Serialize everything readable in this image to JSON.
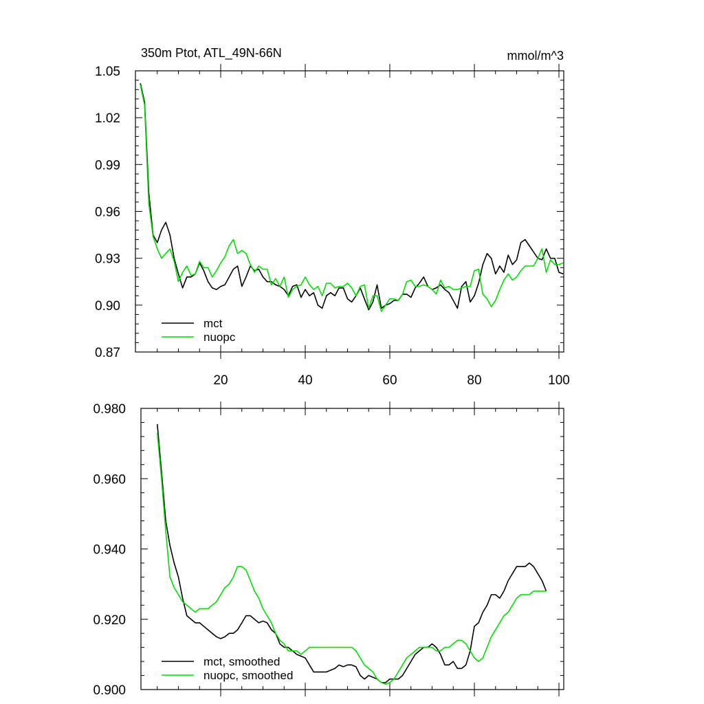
{
  "chart_data": [
    {
      "type": "line",
      "title": "350m Ptot, ATL_49N-66N",
      "units": "mmol/m^3",
      "xlim": [
        0,
        102
      ],
      "ylim": [
        0.87,
        1.05
      ],
      "yticks": [
        0.87,
        0.9,
        0.93,
        0.96,
        0.99,
        1.02,
        1.05
      ],
      "ytick_labels": [
        "0.87",
        "0.90",
        "0.93",
        "0.96",
        "0.99",
        "1.02",
        "1.05"
      ],
      "xticks": [
        20,
        40,
        60,
        80,
        100
      ],
      "xtick_labels": [
        "20",
        "40",
        "60",
        "80",
        "100"
      ],
      "legend_position": "bottom-left",
      "series": [
        {
          "name": "mct",
          "color": "#000000",
          "x": [
            1,
            2,
            3,
            4,
            5,
            6,
            7,
            8,
            9,
            10,
            11,
            12,
            13,
            14,
            15,
            16,
            17,
            18,
            19,
            20,
            21,
            22,
            23,
            24,
            25,
            26,
            27,
            28,
            29,
            30,
            31,
            32,
            33,
            34,
            35,
            36,
            37,
            38,
            39,
            40,
            41,
            42,
            43,
            44,
            45,
            46,
            47,
            48,
            49,
            50,
            51,
            52,
            53,
            54,
            55,
            56,
            57,
            58,
            59,
            60,
            61,
            62,
            63,
            64,
            65,
            66,
            67,
            68,
            69,
            70,
            71,
            72,
            73,
            74,
            75,
            76,
            77,
            78,
            79,
            80,
            81,
            82,
            83,
            84,
            85,
            86,
            87,
            88,
            89,
            90,
            91,
            92,
            93,
            94,
            95,
            96,
            97,
            98,
            99,
            100,
            101
          ],
          "values": [
            1.042,
            1.03,
            0.972,
            0.945,
            0.94,
            0.948,
            0.953,
            0.945,
            0.93,
            0.92,
            0.911,
            0.918,
            0.918,
            0.92,
            0.927,
            0.922,
            0.915,
            0.911,
            0.91,
            0.912,
            0.913,
            0.918,
            0.923,
            0.925,
            0.912,
            0.918,
            0.925,
            0.922,
            0.923,
            0.918,
            0.915,
            0.915,
            0.913,
            0.912,
            0.91,
            0.906,
            0.912,
            0.913,
            0.905,
            0.91,
            0.906,
            0.908,
            0.9,
            0.898,
            0.906,
            0.908,
            0.906,
            0.911,
            0.911,
            0.904,
            0.902,
            0.906,
            0.911,
            0.904,
            0.897,
            0.902,
            0.913,
            0.898,
            0.9,
            0.901,
            0.903,
            0.903,
            0.907,
            0.907,
            0.905,
            0.911,
            0.914,
            0.918,
            0.912,
            0.91,
            0.911,
            0.913,
            0.91,
            0.908,
            0.903,
            0.898,
            0.912,
            0.915,
            0.902,
            0.906,
            0.914,
            0.926,
            0.933,
            0.93,
            0.92,
            0.925,
            0.921,
            0.932,
            0.926,
            0.929,
            0.94,
            0.942,
            0.938,
            0.934,
            0.93,
            0.929,
            0.936,
            0.93,
            0.93,
            0.921,
            0.92
          ]
        },
        {
          "name": "nuopc",
          "color": "#00dd00",
          "x": [
            1,
            2,
            3,
            4,
            5,
            6,
            7,
            8,
            9,
            10,
            11,
            12,
            13,
            14,
            15,
            16,
            17,
            18,
            19,
            20,
            21,
            22,
            23,
            24,
            25,
            26,
            27,
            28,
            29,
            30,
            31,
            32,
            33,
            34,
            35,
            36,
            37,
            38,
            39,
            40,
            41,
            42,
            43,
            44,
            45,
            46,
            47,
            48,
            49,
            50,
            51,
            52,
            53,
            54,
            55,
            56,
            57,
            58,
            59,
            60,
            61,
            62,
            63,
            64,
            65,
            66,
            67,
            68,
            69,
            70,
            71,
            72,
            73,
            74,
            75,
            76,
            77,
            78,
            79,
            80,
            81,
            82,
            83,
            84,
            85,
            86,
            87,
            88,
            89,
            90,
            91,
            92,
            93,
            94,
            95,
            96,
            97,
            98,
            99,
            100,
            101
          ],
          "values": [
            1.041,
            1.028,
            0.965,
            0.944,
            0.936,
            0.93,
            0.933,
            0.936,
            0.928,
            0.915,
            0.921,
            0.925,
            0.919,
            0.92,
            0.928,
            0.924,
            0.924,
            0.918,
            0.922,
            0.927,
            0.931,
            0.938,
            0.942,
            0.933,
            0.935,
            0.933,
            0.926,
            0.921,
            0.925,
            0.923,
            0.923,
            0.913,
            0.917,
            0.912,
            0.918,
            0.905,
            0.91,
            0.912,
            0.913,
            0.918,
            0.913,
            0.91,
            0.912,
            0.906,
            0.914,
            0.914,
            0.911,
            0.912,
            0.912,
            0.914,
            0.911,
            0.906,
            0.912,
            0.913,
            0.898,
            0.906,
            0.906,
            0.896,
            0.9,
            0.904,
            0.904,
            0.903,
            0.907,
            0.915,
            0.916,
            0.912,
            0.912,
            0.913,
            0.912,
            0.91,
            0.907,
            0.916,
            0.911,
            0.912,
            0.91,
            0.91,
            0.911,
            0.912,
            0.912,
            0.922,
            0.923,
            0.907,
            0.904,
            0.899,
            0.903,
            0.91,
            0.916,
            0.92,
            0.916,
            0.918,
            0.922,
            0.925,
            0.925,
            0.925,
            0.93,
            0.936,
            0.921,
            0.929,
            0.926,
            0.926,
            0.927
          ]
        }
      ]
    },
    {
      "type": "line",
      "title": "",
      "xlim": [
        0,
        102
      ],
      "ylim": [
        0.9,
        0.98
      ],
      "yticks": [
        0.9,
        0.92,
        0.94,
        0.96,
        0.98
      ],
      "ytick_labels": [
        "0.900",
        "0.920",
        "0.940",
        "0.960",
        "0.980"
      ],
      "xticks": [
        20,
        40,
        60,
        80,
        100
      ],
      "legend_position": "bottom-left",
      "series": [
        {
          "name": "mct, smoothed",
          "color": "#000000",
          "x": [
            5,
            6,
            7,
            8,
            9,
            10,
            11,
            12,
            13,
            14,
            15,
            16,
            17,
            18,
            19,
            20,
            21,
            22,
            23,
            24,
            25,
            26,
            27,
            28,
            29,
            30,
            31,
            32,
            33,
            34,
            35,
            36,
            37,
            38,
            39,
            40,
            41,
            42,
            43,
            44,
            45,
            46,
            47,
            48,
            49,
            50,
            51,
            52,
            53,
            54,
            55,
            56,
            57,
            58,
            59,
            60,
            61,
            62,
            63,
            64,
            65,
            66,
            67,
            68,
            69,
            70,
            71,
            72,
            73,
            74,
            75,
            76,
            77,
            78,
            79,
            80,
            81,
            82,
            83,
            84,
            85,
            86,
            87,
            88,
            89,
            90,
            91,
            92,
            93,
            94,
            95,
            96,
            97
          ],
          "values": [
            0.9755,
            0.962,
            0.948,
            0.941,
            0.936,
            0.932,
            0.926,
            0.921,
            0.92,
            0.919,
            0.919,
            0.918,
            0.917,
            0.916,
            0.915,
            0.9145,
            0.915,
            0.916,
            0.916,
            0.917,
            0.919,
            0.921,
            0.921,
            0.92,
            0.919,
            0.9195,
            0.919,
            0.917,
            0.916,
            0.913,
            0.912,
            0.912,
            0.911,
            0.91,
            0.9095,
            0.909,
            0.907,
            0.905,
            0.905,
            0.905,
            0.905,
            0.9055,
            0.906,
            0.907,
            0.9065,
            0.907,
            0.907,
            0.9065,
            0.904,
            0.903,
            0.904,
            0.9035,
            0.903,
            0.902,
            0.902,
            0.903,
            0.903,
            0.903,
            0.904,
            0.906,
            0.908,
            0.91,
            0.911,
            0.912,
            0.912,
            0.913,
            0.912,
            0.91,
            0.907,
            0.907,
            0.908,
            0.906,
            0.906,
            0.907,
            0.911,
            0.918,
            0.919,
            0.922,
            0.924,
            0.927,
            0.927,
            0.926,
            0.928,
            0.931,
            0.933,
            0.935,
            0.935,
            0.935,
            0.936,
            0.935,
            0.933,
            0.931,
            0.928
          ]
        },
        {
          "name": "nuopc, smoothed",
          "color": "#00dd00",
          "x": [
            5,
            6,
            7,
            8,
            9,
            10,
            11,
            12,
            13,
            14,
            15,
            16,
            17,
            18,
            19,
            20,
            21,
            22,
            23,
            24,
            25,
            26,
            27,
            28,
            29,
            30,
            31,
            32,
            33,
            34,
            35,
            36,
            37,
            38,
            39,
            40,
            41,
            42,
            43,
            44,
            45,
            46,
            47,
            48,
            49,
            50,
            51,
            52,
            53,
            54,
            55,
            56,
            57,
            58,
            59,
            60,
            61,
            62,
            63,
            64,
            65,
            66,
            67,
            68,
            69,
            70,
            71,
            72,
            73,
            74,
            75,
            76,
            77,
            78,
            79,
            80,
            81,
            82,
            83,
            84,
            85,
            86,
            87,
            88,
            89,
            90,
            91,
            92,
            93,
            94,
            95,
            96,
            97
          ],
          "values": [
            0.973,
            0.96,
            0.945,
            0.932,
            0.929,
            0.927,
            0.925,
            0.924,
            0.923,
            0.922,
            0.923,
            0.923,
            0.923,
            0.924,
            0.925,
            0.927,
            0.929,
            0.93,
            0.932,
            0.935,
            0.935,
            0.934,
            0.931,
            0.928,
            0.926,
            0.923,
            0.921,
            0.919,
            0.916,
            0.914,
            0.913,
            0.911,
            0.911,
            0.911,
            0.91,
            0.911,
            0.912,
            0.912,
            0.912,
            0.912,
            0.912,
            0.912,
            0.912,
            0.912,
            0.912,
            0.912,
            0.912,
            0.911,
            0.909,
            0.907,
            0.906,
            0.905,
            0.903,
            0.902,
            0.9015,
            0.902,
            0.903,
            0.905,
            0.907,
            0.909,
            0.91,
            0.911,
            0.912,
            0.912,
            0.912,
            0.912,
            0.911,
            0.911,
            0.912,
            0.912,
            0.913,
            0.914,
            0.914,
            0.913,
            0.911,
            0.909,
            0.908,
            0.909,
            0.912,
            0.915,
            0.917,
            0.919,
            0.921,
            0.922,
            0.924,
            0.926,
            0.927,
            0.927,
            0.927,
            0.928,
            0.928,
            0.928,
            0.928
          ]
        }
      ]
    }
  ]
}
